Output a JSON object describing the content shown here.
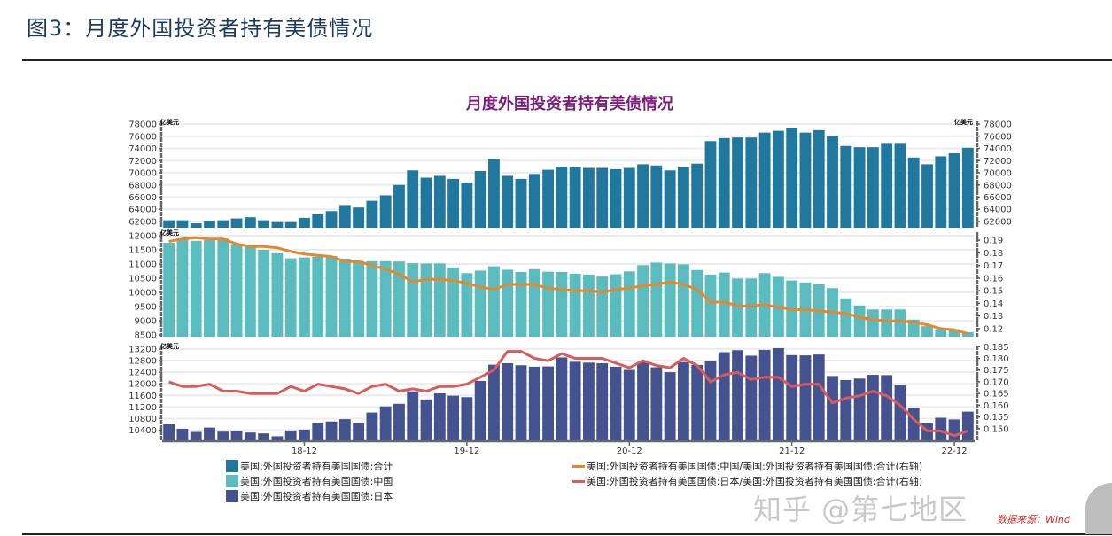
{
  "figure_title": "图3：月度外国投资者持有美债情况",
  "source": "数据来源：Wind",
  "watermark": "知乎 @第七地区",
  "colors": {
    "total": "#21789f",
    "china": "#5bbcc0",
    "japan": "#455290",
    "china_ratio": "#e8872a",
    "japan_ratio": "#d95b5b",
    "title": "#7b1f7b"
  },
  "chart_data": {
    "type": "bar",
    "title": "月度外国投资者持有美债情况",
    "categories": [
      "18-02",
      "18-03",
      "18-04",
      "18-05",
      "18-06",
      "18-07",
      "18-08",
      "18-09",
      "18-10",
      "18-11",
      "18-12",
      "19-01",
      "19-02",
      "19-03",
      "19-04",
      "19-05",
      "19-06",
      "19-07",
      "19-08",
      "19-09",
      "19-10",
      "19-11",
      "19-12",
      "20-01",
      "20-02",
      "20-03",
      "20-04",
      "20-05",
      "20-06",
      "20-07",
      "20-08",
      "20-09",
      "20-10",
      "20-11",
      "20-12",
      "21-01",
      "21-02",
      "21-03",
      "21-04",
      "21-05",
      "21-06",
      "21-07",
      "21-08",
      "21-09",
      "21-10",
      "21-11",
      "21-12",
      "22-01",
      "22-02",
      "22-03",
      "22-04",
      "22-05",
      "22-06",
      "22-07",
      "22-08",
      "22-09",
      "22-10",
      "22-11",
      "22-12",
      "23-01"
    ],
    "x_tick_labels": [
      "18-12",
      "19-12",
      "20-12",
      "21-12",
      "22-12"
    ],
    "unit": "亿美元",
    "panels": [
      {
        "left_ticks": [
          62000,
          64000,
          66000,
          68000,
          70000,
          72000,
          74000,
          76000,
          78000
        ],
        "right_ticks": [
          62000,
          64000,
          66000,
          68000,
          70000,
          72000,
          74000,
          76000,
          78000
        ],
        "left_unit": "亿美元",
        "right_unit": "亿美元",
        "series": [
          {
            "name": "美国:外国投资者持有美国国债:合计",
            "type": "bar",
            "axis": "left",
            "color": "#21789f",
            "values": [
              62200,
              62200,
              61700,
              62100,
              62200,
              62500,
              62700,
              62200,
              61900,
              61900,
              62600,
              63200,
              63700,
              64700,
              64300,
              65400,
              66300,
              68000,
              70400,
              69200,
              69500,
              69000,
              68400,
              70300,
              72300,
              69500,
              69000,
              69800,
              70500,
              71000,
              70900,
              70800,
              70800,
              70600,
              70800,
              71400,
              71200,
              70400,
              70900,
              71500,
              75200,
              75700,
              75800,
              75800,
              76600,
              76900,
              77400,
              76600,
              77000,
              76100,
              74400,
              74200,
              74200,
              74900,
              74900,
              72500,
              71400,
              72700,
              73200,
              74100
            ]
          }
        ]
      },
      {
        "left_ticks": [
          8500,
          9000,
          9500,
          10000,
          10500,
          11000,
          11500,
          12000
        ],
        "right_ticks": [
          0.12,
          0.13,
          0.14,
          0.15,
          0.16,
          0.17,
          0.18,
          0.19
        ],
        "left_unit": "亿美元",
        "series": [
          {
            "name": "美国:外国投资者持有美国国债:中国",
            "type": "bar",
            "axis": "left",
            "color": "#5bbcc0",
            "values": [
              11750,
              11900,
              11820,
              11850,
              11900,
              11700,
              11600,
              11500,
              11380,
              11200,
              11230,
              11260,
              11280,
              11190,
              11100,
              11100,
              11100,
              11090,
              11030,
              11020,
              11020,
              10880,
              10680,
              10770,
              10920,
              10800,
              10720,
              10820,
              10730,
              10720,
              10660,
              10630,
              10560,
              10640,
              10740,
              10960,
              11050,
              11020,
              10990,
              10790,
              10630,
              10700,
              10490,
              10490,
              10680,
              10550,
              10420,
              10350,
              10290,
              10150,
              9790,
              9540,
              9400,
              9400,
              9400,
              9040,
              8810,
              8700,
              8700,
              8600
            ]
          },
          {
            "name": "美国:外国投资者持有美国国债:中国/美国:外国投资者持有美国国债:合计(右轴)",
            "type": "line",
            "axis": "right",
            "color": "#e8872a",
            "values": [
              0.189,
              0.191,
              0.192,
              0.191,
              0.191,
              0.187,
              0.185,
              0.185,
              0.184,
              0.181,
              0.179,
              0.178,
              0.177,
              0.173,
              0.173,
              0.17,
              0.167,
              0.163,
              0.157,
              0.159,
              0.159,
              0.158,
              0.156,
              0.153,
              0.151,
              0.155,
              0.155,
              0.155,
              0.152,
              0.151,
              0.15,
              0.15,
              0.149,
              0.151,
              0.152,
              0.154,
              0.155,
              0.157,
              0.155,
              0.151,
              0.141,
              0.141,
              0.138,
              0.138,
              0.139,
              0.137,
              0.135,
              0.135,
              0.134,
              0.133,
              0.132,
              0.129,
              0.127,
              0.126,
              0.126,
              0.125,
              0.123,
              0.12,
              0.119,
              0.116
            ]
          }
        ]
      },
      {
        "left_ticks": [
          10400,
          10800,
          11200,
          11600,
          12000,
          12400,
          12800,
          13200
        ],
        "right_ticks": [
          0.15,
          0.155,
          0.16,
          0.165,
          0.17,
          0.175,
          0.18,
          0.185
        ],
        "left_unit": "亿美元",
        "series": [
          {
            "name": "美国:外国投资者持有美国国债:日本",
            "type": "bar",
            "axis": "left",
            "color": "#455290",
            "values": [
              10600,
              10450,
              10340,
              10490,
              10350,
              10370,
              10320,
              10290,
              10190,
              10390,
              10420,
              10650,
              10700,
              10780,
              10640,
              11010,
              11220,
              11310,
              11740,
              11460,
              11670,
              11590,
              11540,
              12100,
              12660,
              12710,
              12640,
              12590,
              12600,
              12910,
              12760,
              12730,
              12710,
              12590,
              12480,
              12750,
              12570,
              12400,
              12750,
              12650,
              12780,
              13090,
              13160,
              12970,
              13170,
              13230,
              12990,
              12980,
              13010,
              12270,
              12130,
              12180,
              12310,
              12300,
              11950,
              11170,
              10640,
              10830,
              10770,
              11040
            ]
          },
          {
            "name": "美国:外国投资者持有美国国债:日本/美国:外国投资者持有美国国债:合计(右轴)",
            "type": "line",
            "axis": "right",
            "color": "#d95b5b",
            "values": [
              0.17,
              0.168,
              0.168,
              0.169,
              0.166,
              0.166,
              0.165,
              0.165,
              0.165,
              0.168,
              0.166,
              0.169,
              0.168,
              0.167,
              0.165,
              0.168,
              0.169,
              0.166,
              0.167,
              0.166,
              0.168,
              0.168,
              0.169,
              0.172,
              0.175,
              0.183,
              0.183,
              0.18,
              0.179,
              0.182,
              0.18,
              0.18,
              0.18,
              0.178,
              0.176,
              0.179,
              0.177,
              0.176,
              0.18,
              0.177,
              0.17,
              0.173,
              0.174,
              0.171,
              0.172,
              0.172,
              0.168,
              0.169,
              0.169,
              0.161,
              0.163,
              0.164,
              0.166,
              0.164,
              0.16,
              0.154,
              0.149,
              0.149,
              0.147,
              0.149
            ]
          }
        ]
      }
    ],
    "legend": {
      "placement": "bottom",
      "items": [
        {
          "label": "美国:外国投资者持有美国国债:合计",
          "kind": "bar",
          "color": "#21789f"
        },
        {
          "label": "美国:外国投资者持有美国国债:中国",
          "kind": "bar",
          "color": "#5bbcc0"
        },
        {
          "label": "美国:外国投资者持有美国国债:日本",
          "kind": "bar",
          "color": "#455290"
        },
        {
          "label": "美国:外国投资者持有美国国债:中国/美国:外国投资者持有美国国债:合计(右轴)",
          "kind": "line",
          "color": "#e8872a"
        },
        {
          "label": "美国:外国投资者持有美国国债:日本/美国:外国投资者持有美国国债:合计(右轴)",
          "kind": "line",
          "color": "#d95b5b"
        }
      ]
    },
    "grid": true
  }
}
